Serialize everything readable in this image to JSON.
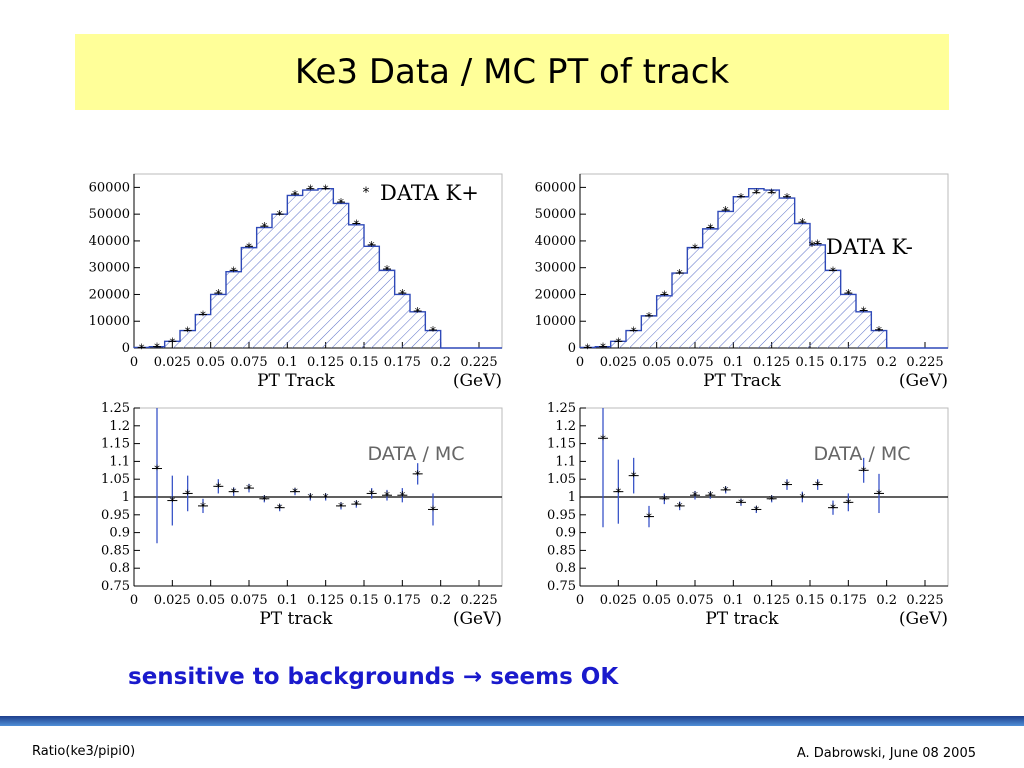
{
  "slide": {
    "title": "Ke3 Data / MC PT of track",
    "caption_left": "sensitive to backgrounds",
    "caption_arrow": "→",
    "caption_right": "seems OK",
    "footer_left": "Ratio(ke3/pipi0)",
    "footer_right": "A. Dabrowski, June 08 2005"
  },
  "chart_data": [
    {
      "id": "kplus-dist",
      "type": "histogram",
      "xlabel": "PT Track",
      "xunit": "(GeV)",
      "legend": "DATA  K+",
      "legend_position": "top-right",
      "xlim": [
        0,
        0.24
      ],
      "ylim": [
        0,
        65000
      ],
      "x_ticks": [
        "0",
        "0.025",
        "0.05",
        "0.075",
        "0.1",
        "0.125",
        "0.15",
        "0.175",
        "0.2",
        "0.225"
      ],
      "y_ticks": [
        "0",
        "10000",
        "20000",
        "30000",
        "40000",
        "50000",
        "60000"
      ],
      "bin_width": 0.01,
      "bin_starts": [
        0,
        0.01,
        0.02,
        0.03,
        0.04,
        0.05,
        0.06,
        0.07,
        0.08,
        0.09,
        0.1,
        0.11,
        0.12,
        0.13,
        0.14,
        0.15,
        0.16,
        0.17,
        0.18,
        0.19,
        0.2,
        0.21,
        0.22,
        0.23
      ],
      "series": [
        {
          "role": "mc",
          "values": [
            200,
            500,
            2500,
            6500,
            12500,
            20000,
            28500,
            37500,
            45000,
            50000,
            57000,
            59000,
            59500,
            54000,
            46000,
            38000,
            29000,
            20000,
            13500,
            6500,
            0,
            0,
            0,
            0
          ]
        },
        {
          "role": "data",
          "values": [
            200,
            500,
            2500,
            6500,
            12500,
            20500,
            29000,
            38000,
            45500,
            50000,
            57500,
            59500,
            59500,
            54500,
            46500,
            38500,
            29500,
            20500,
            13800,
            6700,
            0,
            0,
            0,
            0
          ]
        }
      ]
    },
    {
      "id": "kminus-dist",
      "type": "histogram",
      "xlabel": "PT Track",
      "xunit": "(GeV)",
      "legend": "DATA  K-",
      "legend_position": "middle-right",
      "xlim": [
        0,
        0.24
      ],
      "ylim": [
        0,
        65000
      ],
      "x_ticks": [
        "0",
        "0.025",
        "0.05",
        "0.075",
        "0.1",
        "0.125",
        "0.15",
        "0.175",
        "0.2",
        "0.225"
      ],
      "y_ticks": [
        "0",
        "10000",
        "20000",
        "30000",
        "40000",
        "50000",
        "60000"
      ],
      "bin_width": 0.01,
      "bin_starts": [
        0,
        0.01,
        0.02,
        0.03,
        0.04,
        0.05,
        0.06,
        0.07,
        0.08,
        0.09,
        0.1,
        0.11,
        0.12,
        0.13,
        0.14,
        0.15,
        0.16,
        0.17,
        0.18,
        0.19,
        0.2,
        0.21,
        0.22,
        0.23
      ],
      "series": [
        {
          "role": "mc",
          "values": [
            200,
            500,
            2500,
            6500,
            12000,
            19500,
            28000,
            37500,
            44500,
            51000,
            56500,
            59500,
            59000,
            56000,
            46500,
            38500,
            29000,
            20000,
            13500,
            6500,
            0,
            0,
            0,
            0
          ]
        },
        {
          "role": "data",
          "values": [
            200,
            500,
            2500,
            6500,
            12000,
            20000,
            28000,
            37500,
            45000,
            51500,
            56500,
            58000,
            58000,
            56500,
            47000,
            39000,
            29000,
            20500,
            14000,
            6800,
            0,
            0,
            0,
            0
          ]
        }
      ]
    },
    {
      "id": "kplus-ratio",
      "type": "scatter",
      "xlabel": "PT track",
      "xunit": "(GeV)",
      "annotation": "DATA / MC",
      "xlim": [
        0,
        0.24
      ],
      "ylim": [
        0.75,
        1.25
      ],
      "reference_line": 1,
      "x_ticks": [
        "0",
        "0.025",
        "0.05",
        "0.075",
        "0.1",
        "0.125",
        "0.15",
        "0.175",
        "0.2",
        "0.225"
      ],
      "y_ticks": [
        "0.75",
        "0.8",
        "0.85",
        "0.9",
        "0.95",
        "1",
        "1.05",
        "1.1",
        "1.15",
        "1.2",
        "1.25"
      ],
      "x": [
        0.015,
        0.025,
        0.035,
        0.045,
        0.055,
        0.065,
        0.075,
        0.085,
        0.095,
        0.105,
        0.115,
        0.125,
        0.135,
        0.145,
        0.155,
        0.165,
        0.175,
        0.185,
        0.195
      ],
      "y": [
        1.08,
        0.99,
        1.01,
        0.975,
        1.03,
        1.015,
        1.025,
        0.995,
        0.97,
        1.015,
        1.0,
        1.0,
        0.975,
        0.98,
        1.01,
        1.005,
        1.005,
        1.065,
        0.965
      ],
      "yerr": [
        0.21,
        0.07,
        0.05,
        0.02,
        0.02,
        0.012,
        0.012,
        0.01,
        0.01,
        0.01,
        0.01,
        0.01,
        0.01,
        0.01,
        0.015,
        0.015,
        0.02,
        0.03,
        0.045
      ]
    },
    {
      "id": "kminus-ratio",
      "type": "scatter",
      "xlabel": "PT track",
      "xunit": "(GeV)",
      "annotation": "DATA / MC",
      "xlim": [
        0,
        0.24
      ],
      "ylim": [
        0.75,
        1.25
      ],
      "reference_line": 1,
      "x_ticks": [
        "0",
        "0.025",
        "0.05",
        "0.075",
        "0.1",
        "0.125",
        "0.15",
        "0.175",
        "0.2",
        "0.225"
      ],
      "y_ticks": [
        "0.75",
        "0.8",
        "0.85",
        "0.9",
        "0.95",
        "1",
        "1.05",
        "1.1",
        "1.15",
        "1.2",
        "1.25"
      ],
      "x": [
        0.015,
        0.025,
        0.035,
        0.045,
        0.055,
        0.065,
        0.075,
        0.085,
        0.095,
        0.105,
        0.115,
        0.125,
        0.135,
        0.145,
        0.155,
        0.165,
        0.175,
        0.185,
        0.195
      ],
      "y": [
        1.165,
        1.015,
        1.06,
        0.945,
        0.995,
        0.975,
        1.005,
        1.005,
        1.02,
        0.985,
        0.965,
        0.995,
        1.035,
        1.0,
        1.035,
        0.97,
        0.985,
        1.075,
        1.01
      ],
      "yerr": [
        0.25,
        0.09,
        0.05,
        0.03,
        0.015,
        0.012,
        0.012,
        0.01,
        0.01,
        0.01,
        0.01,
        0.01,
        0.015,
        0.015,
        0.015,
        0.02,
        0.025,
        0.035,
        0.055
      ]
    }
  ]
}
